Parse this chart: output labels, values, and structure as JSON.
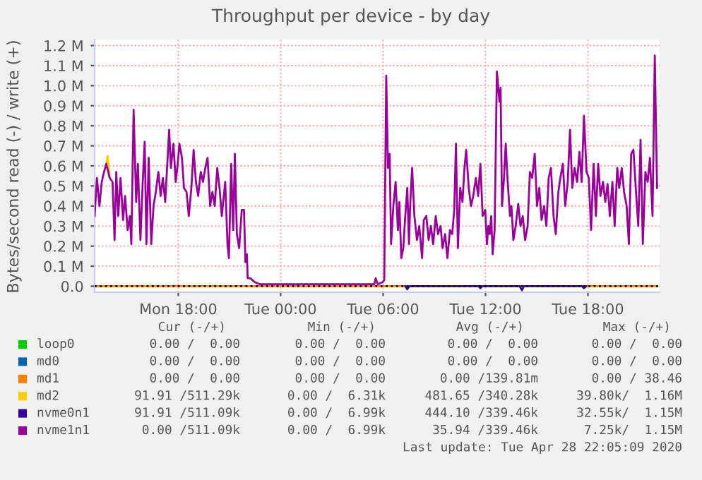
{
  "chart_data": {
    "type": "line",
    "title": "Throughput per device - by day",
    "ylabel": "Bytes/second read (-) / write (+)",
    "xlim": [
      "2020-04-27T13:06",
      "2020-04-28T22:12"
    ],
    "xticks": [
      {
        "value": "2020-04-27T18:00",
        "label": "Mon 18:00"
      },
      {
        "value": "2020-04-28T00:00",
        "label": "Tue 00:00"
      },
      {
        "value": "2020-04-28T06:00",
        "label": "Tue 06:00"
      },
      {
        "value": "2020-04-28T12:00",
        "label": "Tue 12:00"
      },
      {
        "value": "2020-04-28T18:00",
        "label": "Tue 18:00"
      }
    ],
    "ylim": [
      -0.03,
      1.23
    ],
    "yticks": [
      {
        "value": 0,
        "label": "0.0"
      },
      {
        "value": 0.1,
        "label": "0.1 M"
      },
      {
        "value": 0.2,
        "label": "0.2 M"
      },
      {
        "value": 0.3,
        "label": "0.3 M"
      },
      {
        "value": 0.4,
        "label": "0.4 M"
      },
      {
        "value": 0.5,
        "label": "0.5 M"
      },
      {
        "value": 0.6,
        "label": "0.6 M"
      },
      {
        "value": 0.7,
        "label": "0.7 M"
      },
      {
        "value": 0.8,
        "label": "0.8 M"
      },
      {
        "value": 0.9,
        "label": "0.9 M"
      },
      {
        "value": 1.0,
        "label": "1.0 M"
      },
      {
        "value": 1.1,
        "label": "1.1 M"
      },
      {
        "value": 1.2,
        "label": "1.2 M"
      }
    ],
    "grid": true,
    "legend": "bottom",
    "ref_lines": [
      {
        "axis": "y",
        "value": 0,
        "label": null,
        "color": "#000000",
        "line_style": "dotted"
      }
    ],
    "series": [
      {
        "name": "loop0",
        "color": "#00cc00"
      },
      {
        "name": "md0",
        "color": "#0066b3"
      },
      {
        "name": "md1",
        "color": "#ff8000",
        "x": [
          "2020-04-27T13:06",
          "2020-04-28T22:03"
        ],
        "values": [
          0,
          0
        ]
      },
      {
        "name": "md2",
        "color": "#ffcc00",
        "x": [
          "2020-04-27T13:47",
          "2020-04-27T13:52",
          "2020-04-27T13:59"
        ],
        "values": [
          0.61,
          0.65,
          0.54
        ]
      },
      {
        "name": "nvme0n1",
        "color": "#330099",
        "x": [
          "2020-04-28T07:18",
          "2020-04-28T07:25",
          "2020-04-28T07:33",
          "2020-04-28T11:36",
          "2020-04-28T11:42",
          "2020-04-28T11:48",
          "2020-04-28T14:00",
          "2020-04-28T14:08",
          "2020-04-28T14:15",
          "2020-04-28T17:39",
          "2020-04-28T17:46",
          "2020-04-28T17:54"
        ],
        "values": [
          0,
          -0.015,
          0,
          0,
          -0.01,
          0,
          0,
          -0.02,
          0,
          0,
          -0.01,
          0
        ]
      },
      {
        "name": "nvme1n1",
        "color": "#990099",
        "x": [
          "2020-04-27T13:06",
          "2020-04-27T13:14",
          "2020-04-27T13:23",
          "2020-04-27T13:31",
          "2020-04-27T13:39",
          "2020-04-27T13:47",
          "2020-04-27T13:59",
          "2020-04-27T14:09",
          "2020-04-27T14:16",
          "2020-04-27T14:22",
          "2020-04-27T14:29",
          "2020-04-27T14:37",
          "2020-04-27T14:46",
          "2020-04-27T14:53",
          "2020-04-27T15:02",
          "2020-04-27T15:10",
          "2020-04-27T15:15",
          "2020-04-27T15:23",
          "2020-04-27T15:32",
          "2020-04-27T15:38",
          "2020-04-27T15:47",
          "2020-04-27T15:55",
          "2020-04-27T16:02",
          "2020-04-27T16:08",
          "2020-04-27T16:16",
          "2020-04-27T16:25",
          "2020-04-27T16:33",
          "2020-04-27T16:41",
          "2020-04-27T16:50",
          "2020-04-27T16:58",
          "2020-04-27T17:06",
          "2020-04-27T17:14",
          "2020-04-27T17:28",
          "2020-04-27T17:34",
          "2020-04-27T17:43",
          "2020-04-27T17:51",
          "2020-04-27T17:58",
          "2020-04-27T18:04",
          "2020-04-27T18:13",
          "2020-04-27T18:20",
          "2020-04-27T18:29",
          "2020-04-27T18:37",
          "2020-04-27T18:46",
          "2020-04-27T18:54",
          "2020-04-27T19:02",
          "2020-04-27T19:10",
          "2020-04-27T19:19",
          "2020-04-27T19:27",
          "2020-04-27T19:35",
          "2020-04-27T19:43",
          "2020-04-27T19:52",
          "2020-04-27T20:00",
          "2020-04-27T20:08",
          "2020-04-27T20:17",
          "2020-04-27T20:25",
          "2020-04-27T20:33",
          "2020-04-27T20:45",
          "2020-04-27T20:53",
          "2020-04-27T20:58",
          "2020-04-27T21:06",
          "2020-04-27T21:13",
          "2020-04-27T21:19",
          "2020-04-27T21:26",
          "2020-04-27T21:34",
          "2020-04-27T21:43",
          "2020-04-27T21:51",
          "2020-04-27T21:56",
          "2020-04-27T22:01",
          "2020-04-27T22:04",
          "2020-04-27T22:13",
          "2020-04-27T22:29",
          "2020-04-27T22:46",
          "2020-04-28T01:00",
          "2020-04-28T04:15",
          "2020-04-28T05:29",
          "2020-04-28T05:34",
          "2020-04-28T05:41",
          "2020-04-28T05:58",
          "2020-04-28T06:04",
          "2020-04-28T06:11",
          "2020-04-28T06:17",
          "2020-04-28T06:23",
          "2020-04-28T06:28",
          "2020-04-28T06:36",
          "2020-04-28T06:44",
          "2020-04-28T06:52",
          "2020-04-28T06:57",
          "2020-04-28T07:04",
          "2020-04-28T07:11",
          "2020-04-28T07:17",
          "2020-04-28T07:25",
          "2020-04-28T07:31",
          "2020-04-28T07:35",
          "2020-04-28T07:42",
          "2020-04-28T07:50",
          "2020-04-28T07:59",
          "2020-04-28T08:07",
          "2020-04-28T08:17",
          "2020-04-28T08:23",
          "2020-04-28T08:32",
          "2020-04-28T08:40",
          "2020-04-28T08:48",
          "2020-04-28T08:56",
          "2020-04-28T09:05",
          "2020-04-28T09:13",
          "2020-04-28T09:22",
          "2020-04-28T09:29",
          "2020-04-28T09:38",
          "2020-04-28T09:46",
          "2020-04-28T09:55",
          "2020-04-28T10:03",
          "2020-04-28T10:10",
          "2020-04-28T10:16",
          "2020-04-28T10:23",
          "2020-04-28T10:31",
          "2020-04-28T10:39",
          "2020-04-28T10:46",
          "2020-04-28T10:52",
          "2020-04-28T11:01",
          "2020-04-28T11:09",
          "2020-04-28T11:17",
          "2020-04-28T11:26",
          "2020-04-28T11:34",
          "2020-04-28T11:42",
          "2020-04-28T11:50",
          "2020-04-28T11:59",
          "2020-04-28T12:05",
          "2020-04-28T12:10",
          "2020-04-28T12:15",
          "2020-04-28T12:20",
          "2020-04-28T12:25",
          "2020-04-28T12:32",
          "2020-04-28T12:40",
          "2020-04-28T12:49",
          "2020-04-28T12:53",
          "2020-04-28T12:58",
          "2020-04-28T13:05",
          "2020-04-28T13:11",
          "2020-04-28T13:18",
          "2020-04-28T13:26",
          "2020-04-28T13:31",
          "2020-04-28T13:38",
          "2020-04-28T13:46",
          "2020-04-28T13:55",
          "2020-04-28T14:03",
          "2020-04-28T14:11",
          "2020-04-28T14:19",
          "2020-04-28T14:28",
          "2020-04-28T14:36",
          "2020-04-28T14:44",
          "2020-04-28T14:53",
          "2020-04-28T15:01",
          "2020-04-28T15:09",
          "2020-04-28T15:17",
          "2020-04-28T15:26",
          "2020-04-28T15:34",
          "2020-04-28T15:42",
          "2020-04-28T15:50",
          "2020-04-28T15:59",
          "2020-04-28T16:07",
          "2020-04-28T16:16",
          "2020-04-28T16:23",
          "2020-04-28T16:32",
          "2020-04-28T16:40",
          "2020-04-28T16:49",
          "2020-04-28T16:57",
          "2020-04-28T17:05",
          "2020-04-28T17:13",
          "2020-04-28T17:22",
          "2020-04-28T17:30",
          "2020-04-28T17:38",
          "2020-04-28T17:46",
          "2020-04-28T17:55",
          "2020-04-28T18:03",
          "2020-04-28T18:11",
          "2020-04-28T18:20",
          "2020-04-28T18:28",
          "2020-04-28T18:36",
          "2020-04-28T18:44",
          "2020-04-28T18:53",
          "2020-04-28T19:01",
          "2020-04-28T19:09",
          "2020-04-28T19:17",
          "2020-04-28T19:26",
          "2020-04-28T19:34",
          "2020-04-28T19:43",
          "2020-04-28T19:50",
          "2020-04-28T19:59",
          "2020-04-28T20:07",
          "2020-04-28T20:16",
          "2020-04-28T20:24",
          "2020-04-28T20:32",
          "2020-04-28T20:40",
          "2020-04-28T20:49",
          "2020-04-28T20:57",
          "2020-04-28T21:05",
          "2020-04-28T21:13",
          "2020-04-28T21:22",
          "2020-04-28T21:30",
          "2020-04-28T21:38",
          "2020-04-28T21:47",
          "2020-04-28T21:55",
          "2020-04-28T22:03"
        ],
        "values": [
          0.35,
          0.54,
          0.4,
          0.52,
          0.57,
          0.61,
          0.54,
          0.52,
          0.23,
          0.57,
          0.35,
          0.54,
          0.33,
          0.45,
          0.28,
          0.35,
          0.21,
          0.88,
          0.42,
          0.61,
          0.23,
          0.52,
          0.72,
          0.21,
          0.64,
          0.21,
          0.4,
          0.47,
          0.57,
          0.45,
          0.54,
          0.42,
          0.78,
          0.59,
          0.71,
          0.52,
          0.61,
          0.71,
          0.64,
          0.49,
          0.47,
          0.35,
          0.49,
          0.68,
          0.52,
          0.45,
          0.57,
          0.52,
          0.59,
          0.64,
          0.4,
          0.47,
          0.4,
          0.59,
          0.49,
          0.35,
          0.52,
          0.21,
          0.14,
          0.61,
          0.28,
          0.66,
          0.26,
          0.19,
          0.38,
          0.38,
          0.12,
          0.16,
          0.04,
          0.04,
          0.02,
          0.01,
          0.01,
          0.01,
          0.01,
          0.04,
          0.01,
          0.02,
          0.03,
          1.05,
          0.59,
          0.66,
          0.21,
          0.4,
          0.52,
          0.28,
          0.42,
          0.14,
          0.19,
          0.33,
          0.49,
          0.21,
          0.4,
          0.59,
          0.35,
          0.23,
          0.3,
          0.14,
          0.33,
          0.35,
          0.23,
          0.3,
          0.21,
          0.35,
          0.26,
          0.3,
          0.19,
          0.26,
          0.14,
          0.28,
          0.26,
          0.38,
          0.71,
          0.19,
          0.49,
          0.42,
          0.59,
          0.68,
          0.49,
          0.4,
          0.45,
          0.54,
          0.45,
          0.61,
          0.35,
          0.38,
          0.21,
          0.3,
          0.26,
          0.35,
          0.16,
          0.28,
          1.07,
          0.92,
          0.99,
          0.4,
          0.54,
          0.71,
          0.52,
          0.35,
          0.4,
          0.23,
          0.3,
          0.41,
          0.3,
          0.35,
          0.23,
          0.3,
          0.57,
          0.54,
          0.66,
          0.4,
          0.49,
          0.33,
          0.4,
          0.3,
          0.54,
          0.59,
          0.35,
          0.26,
          0.47,
          0.54,
          0.61,
          0.4,
          0.52,
          0.78,
          0.49,
          0.59,
          0.52,
          0.67,
          0.52,
          0.85,
          0.57,
          0.54,
          0.28,
          0.61,
          0.35,
          0.61,
          0.45,
          0.52,
          0.42,
          0.51,
          0.35,
          0.52,
          0.3,
          0.59,
          0.49,
          0.59,
          0.47,
          0.4,
          0.21,
          0.66,
          0.68,
          0.47,
          0.3,
          0.73,
          0.21,
          0.57,
          0.52,
          0.64,
          0.35,
          1.15,
          0.49
        ]
      }
    ],
    "annotations": [
      "Cur (-/+)",
      "Min (-/+)",
      "Avg (-/+)",
      "Max (-/+)",
      "0.00 /  0.00",
      "0.00 /  0.00",
      "0.00 /  0.00",
      "0.00 /  0.00",
      "0.00 /  0.00",
      "0.00 /  0.00",
      "0.00 /  0.00",
      "0.00 /  0.00",
      "0.00 /  0.00",
      "0.00 /  0.00",
      "0.00 /139.81m",
      "0.00 / 38.46",
      "91.91 /511.29k",
      "0.00 /  6.31k",
      "481.65 /340.28k",
      "39.80k/  1.16M",
      "91.91 /511.09k",
      "0.00 /  6.99k",
      "444.10 /339.46k",
      "32.55k/  1.15M",
      "0.00 /511.09k",
      "0.00 /  6.99k",
      "35.94 /339.46k",
      "7.25k/  1.15M",
      "Last update: Tue Apr 28 22:05:09 2020"
    ]
  }
}
